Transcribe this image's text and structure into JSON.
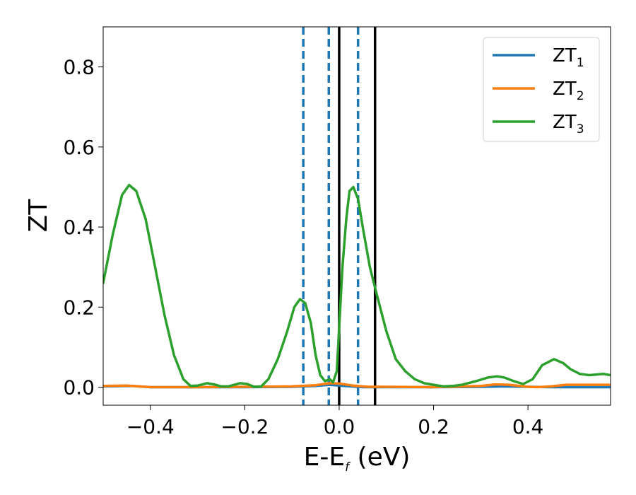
{
  "chart_data": {
    "type": "line",
    "xlabel": {
      "main": "E-E",
      "sub": "f",
      "unit": " (eV)"
    },
    "ylabel": "ZT",
    "xlim": [
      -0.5,
      0.575
    ],
    "ylim": [
      -0.045,
      0.9
    ],
    "xticks": [
      {
        "value": -0.4,
        "label": "−0.4"
      },
      {
        "value": -0.2,
        "label": "−0.2"
      },
      {
        "value": 0.0,
        "label": "0.0"
      },
      {
        "value": 0.2,
        "label": "0.2"
      },
      {
        "value": 0.4,
        "label": "0.4"
      }
    ],
    "yticks": [
      {
        "value": 0.0,
        "label": "0.0"
      },
      {
        "value": 0.2,
        "label": "0.2"
      },
      {
        "value": 0.4,
        "label": "0.4"
      },
      {
        "value": 0.6,
        "label": "0.6"
      },
      {
        "value": 0.8,
        "label": "0.8"
      }
    ],
    "legend": {
      "placement": "top-right",
      "entries": [
        {
          "main": "ZT",
          "sub": "1",
          "series": 0
        },
        {
          "main": "ZT",
          "sub": "2",
          "series": 1
        },
        {
          "main": "ZT",
          "sub": "3",
          "series": 2
        }
      ]
    },
    "series": [
      {
        "color": "#1f77b4",
        "points": [
          [
            -0.5,
            0.002
          ],
          [
            -0.44,
            0.003
          ],
          [
            -0.4,
            0.0
          ],
          [
            -0.3,
            0.0
          ],
          [
            -0.2,
            0.0
          ],
          [
            -0.1,
            0.001
          ],
          [
            -0.05,
            0.003
          ],
          [
            -0.02,
            0.006
          ],
          [
            0.0,
            0.004
          ],
          [
            0.05,
            0.0
          ],
          [
            0.1,
            0.0
          ],
          [
            0.2,
            0.0
          ],
          [
            0.3,
            0.001
          ],
          [
            0.35,
            0.002
          ],
          [
            0.4,
            0.001
          ],
          [
            0.45,
            0.0
          ],
          [
            0.5,
            0.0
          ],
          [
            0.575,
            0.0
          ]
        ]
      },
      {
        "color": "#ff7f0e",
        "points": [
          [
            -0.5,
            0.003
          ],
          [
            -0.45,
            0.004
          ],
          [
            -0.4,
            0.0
          ],
          [
            -0.3,
            0.0
          ],
          [
            -0.2,
            0.001
          ],
          [
            -0.1,
            0.002
          ],
          [
            -0.05,
            0.005
          ],
          [
            -0.02,
            0.01
          ],
          [
            0.0,
            0.009
          ],
          [
            0.03,
            0.004
          ],
          [
            0.06,
            0.001
          ],
          [
            0.1,
            0.001
          ],
          [
            0.2,
            0.0
          ],
          [
            0.3,
            0.003
          ],
          [
            0.33,
            0.007
          ],
          [
            0.36,
            0.006
          ],
          [
            0.4,
            0.001
          ],
          [
            0.42,
            0.0
          ],
          [
            0.45,
            0.002
          ],
          [
            0.48,
            0.006
          ],
          [
            0.52,
            0.006
          ],
          [
            0.575,
            0.006
          ]
        ]
      },
      {
        "color": "#2ca02c",
        "points": [
          [
            -0.5,
            0.26
          ],
          [
            -0.48,
            0.38
          ],
          [
            -0.46,
            0.48
          ],
          [
            -0.445,
            0.505
          ],
          [
            -0.43,
            0.49
          ],
          [
            -0.41,
            0.42
          ],
          [
            -0.39,
            0.3
          ],
          [
            -0.37,
            0.18
          ],
          [
            -0.35,
            0.08
          ],
          [
            -0.33,
            0.02
          ],
          [
            -0.315,
            0.003
          ],
          [
            -0.3,
            0.004
          ],
          [
            -0.28,
            0.01
          ],
          [
            -0.265,
            0.007
          ],
          [
            -0.25,
            0.002
          ],
          [
            -0.235,
            0.002
          ],
          [
            -0.21,
            0.01
          ],
          [
            -0.195,
            0.008
          ],
          [
            -0.18,
            0.001
          ],
          [
            -0.165,
            0.002
          ],
          [
            -0.15,
            0.02
          ],
          [
            -0.13,
            0.07
          ],
          [
            -0.11,
            0.14
          ],
          [
            -0.095,
            0.2
          ],
          [
            -0.083,
            0.22
          ],
          [
            -0.072,
            0.21
          ],
          [
            -0.06,
            0.16
          ],
          [
            -0.05,
            0.08
          ],
          [
            -0.04,
            0.03
          ],
          [
            -0.03,
            0.015
          ],
          [
            -0.02,
            0.02
          ],
          [
            -0.013,
            0.012
          ],
          [
            -0.005,
            0.04
          ],
          [
            0.0,
            0.15
          ],
          [
            0.007,
            0.3
          ],
          [
            0.015,
            0.42
          ],
          [
            0.022,
            0.49
          ],
          [
            0.03,
            0.5
          ],
          [
            0.04,
            0.47
          ],
          [
            0.05,
            0.4
          ],
          [
            0.065,
            0.3
          ],
          [
            0.08,
            0.23
          ],
          [
            0.1,
            0.14
          ],
          [
            0.12,
            0.07
          ],
          [
            0.14,
            0.04
          ],
          [
            0.16,
            0.02
          ],
          [
            0.18,
            0.01
          ],
          [
            0.2,
            0.006
          ],
          [
            0.22,
            0.002
          ],
          [
            0.24,
            0.003
          ],
          [
            0.26,
            0.006
          ],
          [
            0.29,
            0.015
          ],
          [
            0.315,
            0.024
          ],
          [
            0.335,
            0.027
          ],
          [
            0.35,
            0.024
          ],
          [
            0.37,
            0.015
          ],
          [
            0.39,
            0.008
          ],
          [
            0.41,
            0.02
          ],
          [
            0.43,
            0.055
          ],
          [
            0.455,
            0.07
          ],
          [
            0.475,
            0.06
          ],
          [
            0.49,
            0.045
          ],
          [
            0.51,
            0.033
          ],
          [
            0.53,
            0.03
          ],
          [
            0.56,
            0.033
          ],
          [
            0.575,
            0.03
          ]
        ]
      }
    ],
    "vlines": [
      {
        "x": -0.076,
        "color": "#1f77b4",
        "style": "dashed"
      },
      {
        "x": -0.022,
        "color": "#1f77b4",
        "style": "dashed"
      },
      {
        "x": 0.04,
        "color": "#1f77b4",
        "style": "dashed"
      },
      {
        "x": 0.0,
        "color": "#000000",
        "style": "solid"
      },
      {
        "x": 0.076,
        "color": "#000000",
        "style": "solid"
      }
    ],
    "grid": false
  }
}
